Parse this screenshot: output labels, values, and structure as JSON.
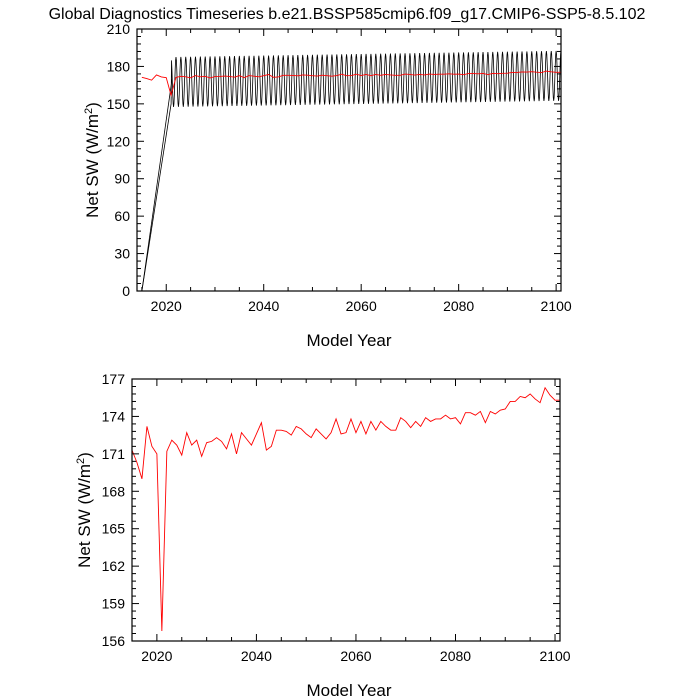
{
  "title": "Global Diagnostics Timeseries b.e21.BSSP585cmip6.f09_g17.CMIP6-SSP5-8.5.102",
  "colors": {
    "monthly": "#000000",
    "annual": "#ff0000",
    "frame": "#000000"
  },
  "chart_data": [
    {
      "type": "line",
      "title": "Global Diagnostics Timeseries b.e21.BSSP585cmip6.f09_g17.CMIP6-SSP5-8.5.102",
      "xlabel": "Model Year",
      "ylabel_main": "Net SW (W/m",
      "ylabel_sup": "2",
      "ylabel_end": ")",
      "xlim": [
        2014,
        2101
      ],
      "ylim": [
        0,
        210
      ],
      "xticks": [
        2020,
        2040,
        2060,
        2080,
        2100
      ],
      "yticks": [
        0,
        30,
        60,
        90,
        120,
        150,
        180,
        210
      ],
      "monthly": {
        "start_year": 2015.0,
        "start_value": 0,
        "ramp_end_year": 2021.0,
        "ramp_end_value": 150,
        "base_start": 167.5,
        "base_end": 172.5,
        "amplitude": 20,
        "end_year": 2101.0
      },
      "annual_ref": "annual_means"
    },
    {
      "type": "line",
      "xlabel": "Model Year",
      "ylabel_main": "Net SW (W/m",
      "ylabel_sup": "2",
      "ylabel_end": ")",
      "xlim": [
        2015,
        2101
      ],
      "ylim": [
        156,
        177
      ],
      "xticks": [
        2020,
        2040,
        2060,
        2080,
        2100
      ],
      "yticks": [
        156,
        159,
        162,
        165,
        168,
        171,
        174,
        177
      ],
      "annual_ref": "annual_means"
    }
  ],
  "annual_means": {
    "x": [
      2015,
      2016,
      2017,
      2018,
      2019,
      2020,
      2021,
      2022,
      2023,
      2024,
      2025,
      2026,
      2027,
      2028,
      2029,
      2030,
      2031,
      2032,
      2033,
      2034,
      2035,
      2036,
      2037,
      2038,
      2039,
      2040,
      2041,
      2042,
      2043,
      2044,
      2045,
      2046,
      2047,
      2048,
      2049,
      2050,
      2051,
      2052,
      2053,
      2054,
      2055,
      2056,
      2057,
      2058,
      2059,
      2060,
      2061,
      2062,
      2063,
      2064,
      2065,
      2066,
      2067,
      2068,
      2069,
      2070,
      2071,
      2072,
      2073,
      2074,
      2075,
      2076,
      2077,
      2078,
      2079,
      2080,
      2081,
      2082,
      2083,
      2084,
      2085,
      2086,
      2087,
      2088,
      2089,
      2090,
      2091,
      2092,
      2093,
      2094,
      2095,
      2096,
      2097,
      2098,
      2099,
      2100,
      2101
    ],
    "y": [
      171.3,
      170.3,
      169.0,
      173.2,
      171.6,
      171.0,
      156.8,
      171.2,
      172.1,
      171.7,
      170.9,
      172.7,
      171.7,
      172.1,
      170.8,
      171.9,
      172.0,
      172.3,
      172.0,
      171.4,
      172.6,
      171.0,
      172.7,
      172.2,
      171.7,
      172.6,
      173.5,
      171.3,
      171.6,
      172.9,
      172.9,
      172.8,
      172.5,
      173.2,
      173.0,
      172.6,
      172.3,
      173.0,
      172.6,
      172.2,
      172.7,
      173.8,
      172.6,
      172.7,
      173.8,
      172.7,
      173.6,
      172.6,
      173.6,
      172.9,
      173.6,
      173.2,
      172.9,
      172.9,
      173.9,
      173.6,
      173.1,
      173.6,
      173.2,
      173.9,
      173.6,
      173.8,
      173.8,
      174.1,
      173.8,
      173.9,
      173.4,
      174.3,
      174.3,
      174.1,
      174.4,
      173.5,
      174.4,
      174.2,
      174.5,
      174.6,
      175.2,
      175.2,
      175.6,
      175.5,
      175.8,
      175.4,
      175.1,
      176.3,
      175.7,
      175.3,
      175.3
    ]
  }
}
